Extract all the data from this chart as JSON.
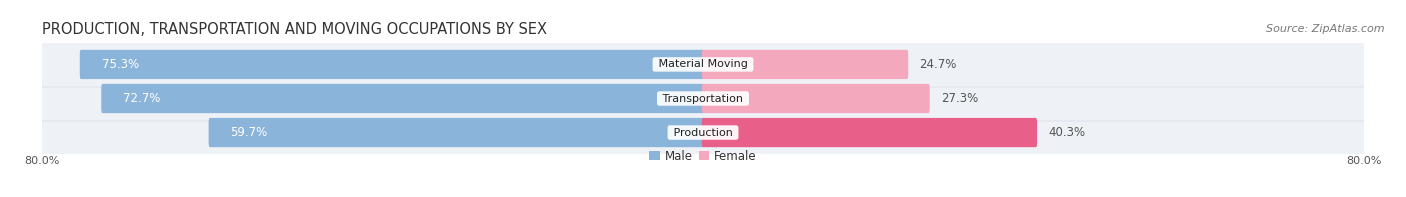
{
  "title": "PRODUCTION, TRANSPORTATION AND MOVING OCCUPATIONS BY SEX",
  "source": "Source: ZipAtlas.com",
  "categories": [
    "Production",
    "Transportation",
    "Material Moving"
  ],
  "male_values": [
    59.7,
    72.7,
    75.3
  ],
  "female_values": [
    40.3,
    27.3,
    24.7
  ],
  "male_color": "#8ab4d9",
  "female_color_light": "#f4a8be",
  "female_color_dark": "#e8608a",
  "female_colors": [
    "#e8608a",
    "#f4a8be",
    "#f4a8be"
  ],
  "background_color": "#ffffff",
  "row_bg_color": "#eef2f7",
  "row_border_color": "#d8e0ea",
  "axis_limit": 80.0,
  "title_fontsize": 10.5,
  "source_fontsize": 8,
  "bar_label_fontsize": 8.5,
  "cat_label_fontsize": 8,
  "legend_fontsize": 8.5,
  "axis_label_fontsize": 8
}
